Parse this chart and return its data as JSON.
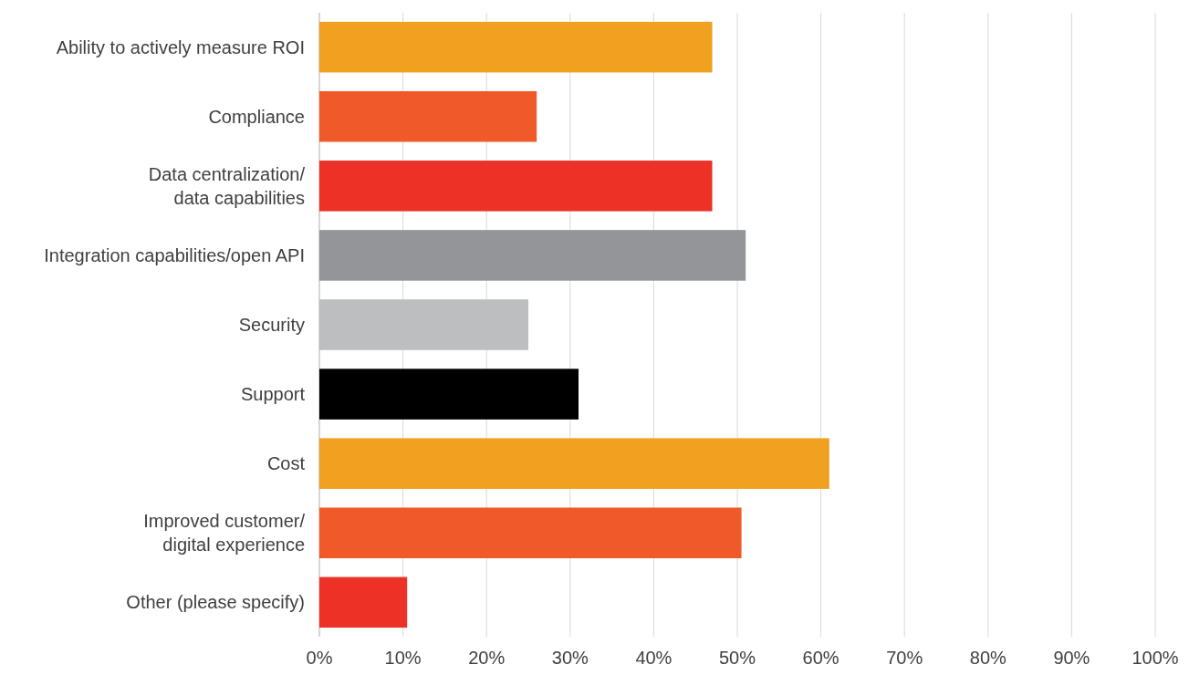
{
  "chart_data": {
    "type": "bar",
    "orientation": "horizontal",
    "categories": [
      "Ability to actively measure ROI",
      "Compliance",
      "Data centralization/\ndata capabilities",
      "Integration capabilities/open API",
      "Security",
      "Support",
      "Cost",
      "Improved customer/\ndigital experience",
      "Other (please specify)"
    ],
    "values": [
      47,
      26,
      47,
      51,
      25,
      31,
      61,
      50.5,
      10.5
    ],
    "colors": [
      "#f1a01f",
      "#f05a28",
      "#ec3127",
      "#939598",
      "#bcbec0",
      "#000000",
      "#f1a01f",
      "#f05a28",
      "#ec3127"
    ],
    "xlim": [
      0,
      100
    ],
    "xticks": [
      {
        "value": 0,
        "label": "0%"
      },
      {
        "value": 10,
        "label": "10%"
      },
      {
        "value": 20,
        "label": "20%"
      },
      {
        "value": 30,
        "label": "30%"
      },
      {
        "value": 40,
        "label": "40%"
      },
      {
        "value": 50,
        "label": "50%"
      },
      {
        "value": 60,
        "label": "60%"
      },
      {
        "value": 70,
        "label": "70%"
      },
      {
        "value": 80,
        "label": "80%"
      },
      {
        "value": 90,
        "label": "90%"
      },
      {
        "value": 100,
        "label": "100%"
      }
    ],
    "grid": "x"
  }
}
